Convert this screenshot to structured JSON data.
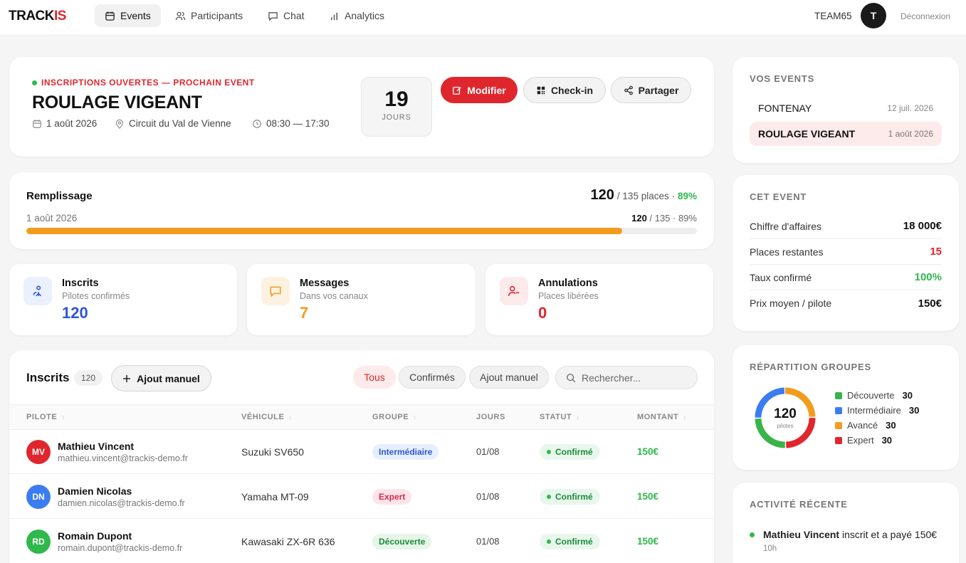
{
  "nav": {
    "logo_a": "TRACK",
    "logo_b": "IS",
    "tabs": [
      {
        "label": "Events",
        "icon": "calendar-icon",
        "active": true
      },
      {
        "label": "Participants",
        "icon": "users-icon"
      },
      {
        "label": "Chat",
        "icon": "chat-icon"
      },
      {
        "label": "Analytics",
        "icon": "bar-chart-icon"
      }
    ],
    "team": "TEAM65",
    "avatar": "T",
    "logout": "Déconnexion"
  },
  "hero": {
    "status": "INSCRIPTIONS OUVERTES — PROCHAIN EVENT",
    "title": "ROULAGE VIGEANT",
    "date": "1 août 2026",
    "place": "Circuit du Val de Vienne",
    "hours": "08:30 — 17:30",
    "days_num": "19",
    "days_label": "JOURS",
    "btn_edit": "Modifier",
    "btn_checkin": "Check-in",
    "btn_share": "Partager"
  },
  "fill": {
    "title": "Remplissage",
    "count": "120",
    "total_text": "/ 135 places ·",
    "pct": "89%",
    "date": "1 août 2026",
    "small_count": "120",
    "small_rest": "/ 135 · 89%",
    "progress": 0.889
  },
  "stats": [
    {
      "title": "Inscrits",
      "sub": "Pilotes confirmés",
      "value": "120",
      "color": "#2f55d4",
      "bg": "#eaf0fd",
      "icon": "user-group-icon"
    },
    {
      "title": "Messages",
      "sub": "Dans vos canaux",
      "value": "7",
      "color": "#f29c1e",
      "bg": "#fdf2e2",
      "icon": "message-icon"
    },
    {
      "title": "Annulations",
      "sub": "Places libérées",
      "value": "0",
      "color": "#e0262d",
      "bg": "#fdeaea",
      "icon": "user-minus-icon"
    }
  ],
  "table": {
    "title": "Inscrits",
    "count": "120",
    "add_label": "Ajout manuel",
    "filters": [
      "Tous",
      "Confirmés",
      "Ajout manuel"
    ],
    "search_placeholder": "Rechercher...",
    "headers": {
      "pilote": "PILOTE",
      "vehicule": "VÉHICULE",
      "groupe": "GROUPE",
      "jours": "JOURS",
      "statut": "STATUT",
      "montant": "MONTANT"
    },
    "rows": [
      {
        "initials": "MV",
        "name": "Mathieu Vincent",
        "email": "mathieu.vincent@trackis-demo.fr",
        "vehicle": "Suzuki SV650",
        "group": "Intermédiaire",
        "days": "01/08",
        "status": "Confirmé",
        "amount": "150€"
      },
      {
        "initials": "DN",
        "name": "Damien Nicolas",
        "email": "damien.nicolas@trackis-demo.fr",
        "vehicle": "Yamaha MT-09",
        "group": "Expert",
        "days": "01/08",
        "status": "Confirmé",
        "amount": "150€"
      },
      {
        "initials": "RD",
        "name": "Romain Dupont",
        "email": "romain.dupont@trackis-demo.fr",
        "vehicle": "Kawasaki ZX-6R 636",
        "group": "Découverte",
        "days": "01/08",
        "status": "Confirmé",
        "amount": "150€"
      }
    ]
  },
  "events_panel": {
    "title": "VOS EVENTS",
    "items": [
      {
        "name": "FONTENAY",
        "date": "12 juil. 2026"
      },
      {
        "name": "ROULAGE VIGEANT",
        "date": "1 août 2026",
        "active": true
      }
    ]
  },
  "this_event": {
    "title": "CET EVENT",
    "rows": [
      {
        "label": "Chiffre d'affaires",
        "value": "18 000€",
        "color": "#111111"
      },
      {
        "label": "Places restantes",
        "value": "15",
        "color": "#e0262d"
      },
      {
        "label": "Taux confirmé",
        "value": "100%",
        "color": "#2fb84c"
      },
      {
        "label": "Prix moyen / pilote",
        "value": "150€",
        "color": "#111111"
      }
    ]
  },
  "groups": {
    "title": "RÉPARTITION GROUPES",
    "center_value": "120",
    "center_label": "pilotes",
    "items": [
      {
        "name": "Découverte",
        "value": 30,
        "color": "#3ab44a"
      },
      {
        "name": "Intermédiaire",
        "value": 30,
        "color": "#3b7cf0"
      },
      {
        "name": "Avancé",
        "value": 30,
        "color": "#f29c1e"
      },
      {
        "name": "Expert",
        "value": 30,
        "color": "#e0262d"
      }
    ]
  },
  "activity": {
    "title": "ACTIVITÉ RÉCENTE",
    "items": [
      {
        "name": "Mathieu Vincent",
        "text": " inscrit et a payé 150€",
        "time": "10h"
      }
    ]
  }
}
